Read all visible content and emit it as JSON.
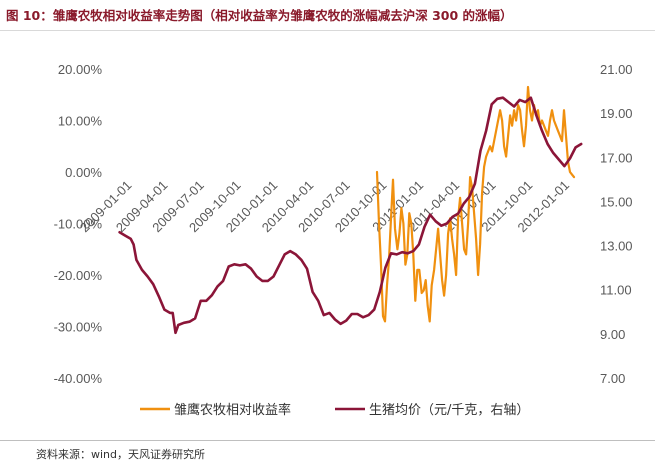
{
  "figure": {
    "title": "图 10：雏鹰农牧相对收益率走势图（相对收益率为雏鹰农牧的涨幅减去沪深 300 的涨幅）",
    "source": "资料来源：wind，天风证券研究所"
  },
  "colors": {
    "title": "#8a1a2b",
    "relative_return": "#f0900f",
    "hog_price": "#8b1538",
    "axis_text": "#595959"
  },
  "chart_data": {
    "type": "line",
    "title": "",
    "x_ticks": [
      "2009-01-01",
      "2009-04-01",
      "2009-07-01",
      "2009-10-01",
      "2010-01-01",
      "2010-04-01",
      "2010-07-01",
      "2010-10-01",
      "2011-01-01",
      "2011-04-01",
      "2011-07-01",
      "2011-10-01",
      "2012-01-01"
    ],
    "x_range": [
      "2008-11-21",
      "2012-02-10"
    ],
    "y_left": {
      "ticks": [
        "20.00%",
        "10.00%",
        "0.00%",
        "-10.00%",
        "-20.00%",
        "-30.00%",
        "-40.00%"
      ],
      "range": [
        -40,
        20
      ],
      "unit": "%"
    },
    "y_right": {
      "ticks": [
        "21.00",
        "19.00",
        "17.00",
        "15.00",
        "13.00",
        "11.00",
        "9.00",
        "7.00"
      ],
      "range": [
        7,
        21
      ]
    },
    "grid": false,
    "legend_position": "bottom",
    "legend": [
      "雏鹰农牧相对收益率",
      "生猪均价（元/千克，右轴）"
    ],
    "series": [
      {
        "name": "雏鹰农牧相对收益率",
        "axis": "left",
        "points": [
          [
            "2010-09-15",
            0.0
          ],
          [
            "2010-09-20",
            -10.0
          ],
          [
            "2010-09-25",
            -18.0
          ],
          [
            "2010-09-30",
            -28.0
          ],
          [
            "2010-10-05",
            -29.0
          ],
          [
            "2010-10-10",
            -22.0
          ],
          [
            "2010-10-15",
            -17.0
          ],
          [
            "2010-10-20",
            -9.0
          ],
          [
            "2010-10-25",
            -1.5
          ],
          [
            "2010-10-30",
            -11.0
          ],
          [
            "2010-11-05",
            -15.0
          ],
          [
            "2010-11-10",
            -12.0
          ],
          [
            "2010-11-15",
            -7.0
          ],
          [
            "2010-11-20",
            -10.0
          ],
          [
            "2010-11-25",
            -18.0
          ],
          [
            "2010-11-30",
            -16.0
          ],
          [
            "2010-12-05",
            -8.0
          ],
          [
            "2010-12-10",
            -10.0
          ],
          [
            "2010-12-15",
            -16.0
          ],
          [
            "2010-12-20",
            -25.0
          ],
          [
            "2010-12-25",
            -19.0
          ],
          [
            "2010-12-30",
            -19.0
          ],
          [
            "2011-01-05",
            -23.5
          ],
          [
            "2011-01-10",
            -23.0
          ],
          [
            "2011-01-15",
            -21.0
          ],
          [
            "2011-01-20",
            -26.0
          ],
          [
            "2011-01-25",
            -29.0
          ],
          [
            "2011-01-30",
            -22.0
          ],
          [
            "2011-02-05",
            -19.0
          ],
          [
            "2011-02-10",
            -15.0
          ],
          [
            "2011-02-15",
            -11.0
          ],
          [
            "2011-02-20",
            -16.0
          ],
          [
            "2011-02-25",
            -21.0
          ],
          [
            "2011-03-02",
            -24.0
          ],
          [
            "2011-03-07",
            -20.0
          ],
          [
            "2011-03-12",
            -12.0
          ],
          [
            "2011-03-17",
            -9.0
          ],
          [
            "2011-03-22",
            -13.0
          ],
          [
            "2011-03-27",
            -16.0
          ],
          [
            "2011-04-01",
            -20.0
          ],
          [
            "2011-04-06",
            -9.0
          ],
          [
            "2011-04-11",
            -5.0
          ],
          [
            "2011-04-16",
            -10.0
          ],
          [
            "2011-04-21",
            -15.0
          ],
          [
            "2011-04-26",
            -16.0
          ],
          [
            "2011-05-01",
            -10.0
          ],
          [
            "2011-05-06",
            -1.0
          ],
          [
            "2011-05-11",
            -3.0
          ],
          [
            "2011-05-16",
            -8.0
          ],
          [
            "2011-05-21",
            -13.0
          ],
          [
            "2011-05-26",
            -20.0
          ],
          [
            "2011-05-31",
            -14.0
          ],
          [
            "2011-06-05",
            -4.0
          ],
          [
            "2011-06-10",
            1.0
          ],
          [
            "2011-06-15",
            3.0
          ],
          [
            "2011-06-20",
            4.0
          ],
          [
            "2011-06-25",
            5.0
          ],
          [
            "2011-06-30",
            4.0
          ],
          [
            "2011-07-05",
            6.0
          ],
          [
            "2011-07-10",
            8.0
          ],
          [
            "2011-07-15",
            10.0
          ],
          [
            "2011-07-20",
            12.0
          ],
          [
            "2011-07-25",
            10.0
          ],
          [
            "2011-07-30",
            5.0
          ],
          [
            "2011-08-04",
            3.0
          ],
          [
            "2011-08-09",
            7.0
          ],
          [
            "2011-08-14",
            11.0
          ],
          [
            "2011-08-19",
            9.0
          ],
          [
            "2011-08-24",
            12.0
          ],
          [
            "2011-08-29",
            10.0
          ],
          [
            "2011-09-03",
            13.0
          ],
          [
            "2011-09-08",
            12.0
          ],
          [
            "2011-09-13",
            8.0
          ],
          [
            "2011-09-18",
            5.0
          ],
          [
            "2011-09-23",
            9.0
          ],
          [
            "2011-09-28",
            16.5
          ],
          [
            "2011-10-03",
            12.0
          ],
          [
            "2011-10-08",
            10.0
          ],
          [
            "2011-10-13",
            13.0
          ],
          [
            "2011-10-18",
            11.0
          ],
          [
            "2011-10-23",
            12.0
          ],
          [
            "2011-10-28",
            9.0
          ],
          [
            "2011-11-02",
            10.0
          ],
          [
            "2011-11-07",
            9.0
          ],
          [
            "2011-11-12",
            8.0
          ],
          [
            "2011-11-17",
            7.0
          ],
          [
            "2011-11-22",
            10.0
          ],
          [
            "2011-11-27",
            12.0
          ],
          [
            "2011-12-02",
            10.0
          ],
          [
            "2011-12-07",
            9.0
          ],
          [
            "2011-12-12",
            8.0
          ],
          [
            "2011-12-17",
            7.0
          ],
          [
            "2011-12-22",
            6.0
          ],
          [
            "2011-12-27",
            12.0
          ],
          [
            "2012-01-01",
            7.0
          ],
          [
            "2012-01-06",
            2.0
          ],
          [
            "2012-01-11",
            0.0
          ],
          [
            "2012-01-16",
            -0.5
          ],
          [
            "2012-01-21",
            -1.0
          ]
        ]
      },
      {
        "name": "生猪均价（元/千克，右轴）",
        "axis": "right",
        "points": [
          [
            "2008-12-10",
            13.6
          ],
          [
            "2008-12-24",
            13.45
          ],
          [
            "2009-01-07",
            13.3
          ],
          [
            "2009-01-14",
            13.05
          ],
          [
            "2009-01-21",
            12.35
          ],
          [
            "2009-02-04",
            11.9
          ],
          [
            "2009-02-18",
            11.6
          ],
          [
            "2009-03-04",
            11.25
          ],
          [
            "2009-03-18",
            10.7
          ],
          [
            "2009-04-01",
            10.1
          ],
          [
            "2009-04-15",
            9.95
          ],
          [
            "2009-04-22",
            9.95
          ],
          [
            "2009-04-29",
            9.05
          ],
          [
            "2009-05-06",
            9.4
          ],
          [
            "2009-05-20",
            9.5
          ],
          [
            "2009-06-03",
            9.55
          ],
          [
            "2009-06-17",
            9.7
          ],
          [
            "2009-07-01",
            10.5
          ],
          [
            "2009-07-15",
            10.5
          ],
          [
            "2009-07-29",
            10.75
          ],
          [
            "2009-08-12",
            11.15
          ],
          [
            "2009-08-26",
            11.4
          ],
          [
            "2009-09-09",
            12.05
          ],
          [
            "2009-09-23",
            12.15
          ],
          [
            "2009-10-07",
            12.1
          ],
          [
            "2009-10-21",
            12.15
          ],
          [
            "2009-11-04",
            11.95
          ],
          [
            "2009-11-18",
            11.6
          ],
          [
            "2009-12-02",
            11.4
          ],
          [
            "2009-12-16",
            11.4
          ],
          [
            "2009-12-30",
            11.6
          ],
          [
            "2010-01-13",
            12.1
          ],
          [
            "2010-01-27",
            12.6
          ],
          [
            "2010-02-10",
            12.75
          ],
          [
            "2010-02-24",
            12.6
          ],
          [
            "2010-03-10",
            12.35
          ],
          [
            "2010-03-24",
            11.95
          ],
          [
            "2010-04-07",
            10.9
          ],
          [
            "2010-04-21",
            10.5
          ],
          [
            "2010-05-05",
            9.85
          ],
          [
            "2010-05-19",
            9.95
          ],
          [
            "2010-06-02",
            9.65
          ],
          [
            "2010-06-16",
            9.45
          ],
          [
            "2010-06-30",
            9.6
          ],
          [
            "2010-07-14",
            9.9
          ],
          [
            "2010-07-28",
            9.9
          ],
          [
            "2010-08-11",
            9.75
          ],
          [
            "2010-08-25",
            9.85
          ],
          [
            "2010-09-08",
            10.1
          ],
          [
            "2010-09-22",
            10.9
          ],
          [
            "2010-10-06",
            12.0
          ],
          [
            "2010-10-20",
            12.65
          ],
          [
            "2010-11-03",
            12.6
          ],
          [
            "2010-11-17",
            12.7
          ],
          [
            "2010-12-01",
            12.65
          ],
          [
            "2010-12-15",
            12.75
          ],
          [
            "2010-12-29",
            13.05
          ],
          [
            "2011-01-12",
            13.85
          ],
          [
            "2011-01-26",
            14.4
          ],
          [
            "2011-02-09",
            14.1
          ],
          [
            "2011-02-23",
            13.9
          ],
          [
            "2011-03-09",
            14.0
          ],
          [
            "2011-03-23",
            14.3
          ],
          [
            "2011-04-06",
            14.45
          ],
          [
            "2011-04-20",
            14.9
          ],
          [
            "2011-05-04",
            15.2
          ],
          [
            "2011-05-18",
            15.8
          ],
          [
            "2011-06-01",
            17.3
          ],
          [
            "2011-06-15",
            18.2
          ],
          [
            "2011-06-29",
            19.4
          ],
          [
            "2011-07-13",
            19.65
          ],
          [
            "2011-07-27",
            19.7
          ],
          [
            "2011-08-10",
            19.5
          ],
          [
            "2011-08-24",
            19.3
          ],
          [
            "2011-09-07",
            19.6
          ],
          [
            "2011-09-21",
            19.5
          ],
          [
            "2011-10-05",
            19.7
          ],
          [
            "2011-10-19",
            18.9
          ],
          [
            "2011-11-02",
            18.2
          ],
          [
            "2011-11-16",
            17.6
          ],
          [
            "2011-11-30",
            17.2
          ],
          [
            "2011-12-14",
            16.9
          ],
          [
            "2011-12-28",
            16.6
          ],
          [
            "2012-01-11",
            16.95
          ],
          [
            "2012-01-25",
            17.45
          ],
          [
            "2012-02-08",
            17.6
          ]
        ]
      }
    ]
  }
}
